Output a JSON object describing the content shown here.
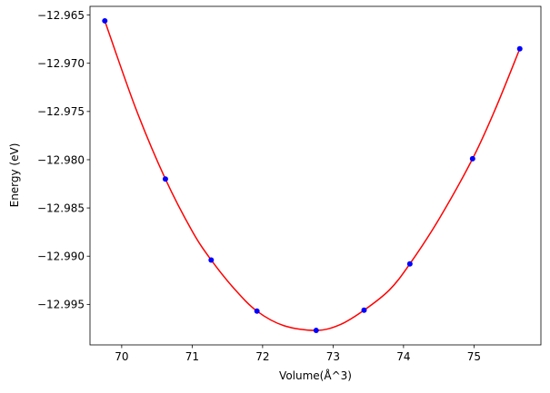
{
  "chart_data": {
    "type": "scatter",
    "title": "",
    "xlabel": "Volume(Å^3)",
    "ylabel": "Energy (eV)",
    "xlim": [
      69.55,
      75.95
    ],
    "ylim": [
      -12.9992,
      -12.9641
    ],
    "xticks": [
      70,
      71,
      72,
      73,
      74,
      75
    ],
    "xtick_labels": [
      "70",
      "71",
      "72",
      "73",
      "74",
      "75"
    ],
    "yticks": [
      -12.965,
      -12.97,
      -12.975,
      -12.98,
      -12.985,
      -12.99,
      -12.995
    ],
    "ytick_labels": [
      "−12.965",
      "−12.970",
      "−12.975",
      "−12.980",
      "−12.985",
      "−12.990",
      "−12.995"
    ],
    "grid": false,
    "series": [
      {
        "type": "scatter",
        "color": "#0000ff",
        "points": [
          {
            "x": 69.76,
            "y": -12.9656
          },
          {
            "x": 70.62,
            "y": -12.982
          },
          {
            "x": 71.27,
            "y": -12.9904
          },
          {
            "x": 71.92,
            "y": -12.9957
          },
          {
            "x": 72.76,
            "y": -12.9977
          },
          {
            "x": 73.44,
            "y": -12.9956
          },
          {
            "x": 74.09,
            "y": -12.9908
          },
          {
            "x": 74.98,
            "y": -12.9799
          },
          {
            "x": 75.65,
            "y": -12.9685
          }
        ]
      },
      {
        "type": "line",
        "color": "#ff0000",
        "fit": [
          0.72,
          0.0,
          1.0,
          0.0
        ]
      }
    ],
    "fit_curve": {
      "color": "#ff0000",
      "x_min": 69.76,
      "x_max": 75.65,
      "samples": [
        {
          "x": 69.76,
          "y": -12.9656
        },
        {
          "x": 70.2,
          "y": -12.9747
        },
        {
          "x": 70.62,
          "y": -12.982
        },
        {
          "x": 71.0,
          "y": -12.9874
        },
        {
          "x": 71.27,
          "y": -12.9904
        },
        {
          "x": 71.6,
          "y": -12.9934
        },
        {
          "x": 71.92,
          "y": -12.9957
        },
        {
          "x": 72.3,
          "y": -12.9972
        },
        {
          "x": 72.76,
          "y": -12.9977
        },
        {
          "x": 73.1,
          "y": -12.9971
        },
        {
          "x": 73.44,
          "y": -12.9956
        },
        {
          "x": 73.8,
          "y": -12.9935
        },
        {
          "x": 74.09,
          "y": -12.9908
        },
        {
          "x": 74.5,
          "y": -12.9862
        },
        {
          "x": 74.98,
          "y": -12.9799
        },
        {
          "x": 75.3,
          "y": -12.9748
        },
        {
          "x": 75.65,
          "y": -12.9685
        }
      ]
    }
  }
}
